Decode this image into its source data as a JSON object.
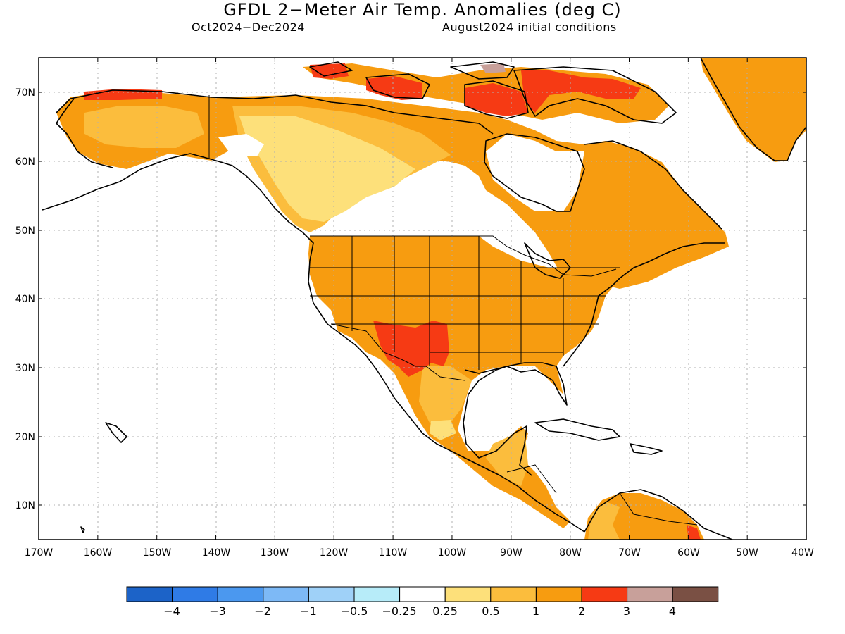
{
  "title": "GFDL 2−Meter Air Temp. Anomalies (deg C)",
  "subtitle_left": "Oct2024−Dec2024",
  "subtitle_right": "August2024 initial conditions",
  "lat_labels": [
    "70N",
    "60N",
    "50N",
    "40N",
    "30N",
    "20N",
    "10N"
  ],
  "lon_labels": [
    "170W",
    "160W",
    "150W",
    "140W",
    "130W",
    "120W",
    "110W",
    "100W",
    "90W",
    "80W",
    "70W",
    "60W",
    "50W",
    "40W"
  ],
  "colorbar": {
    "colors": [
      "#1c63c8",
      "#2f7be6",
      "#4b98ef",
      "#7db9f6",
      "#9fd1f8",
      "#b7ecf9",
      "#ffffff",
      "#fde07a",
      "#fbbd3d",
      "#f79c10",
      "#f63a14",
      "#c8a09a",
      "#7a5044"
    ],
    "labels": [
      "−4",
      "−3",
      "−2",
      "−1",
      "−0.5",
      "−0.25",
      "0.25",
      "0.5",
      "1",
      "2",
      "3",
      "4"
    ]
  },
  "legend_colors": {
    "ocean": "#ffffff",
    "coast": "#000000",
    "grid": "#b0b0b0"
  }
}
